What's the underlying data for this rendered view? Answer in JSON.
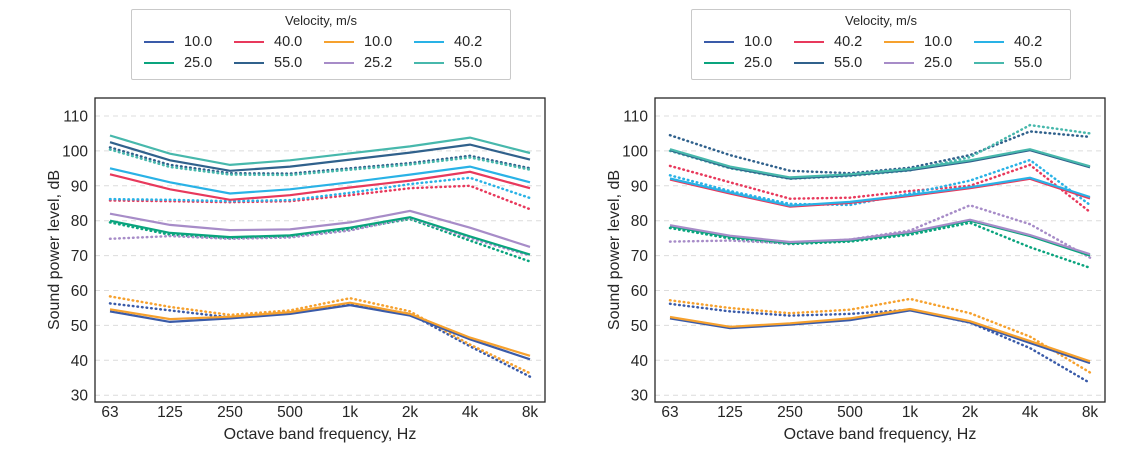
{
  "figure": {
    "background": "#ffffff",
    "text_color": "#262626",
    "grid_color": "#dcdcdc",
    "colors": {
      "blue": "#3A5BA9",
      "green": "#0AA47E",
      "red": "#E8395C",
      "steel_blue": "#30618C",
      "orange": "#F6A12E",
      "purple": "#A78CC8",
      "cyan": "#29B2E6",
      "teal": "#47B8AC"
    }
  },
  "chart_data": [
    {
      "type": "line",
      "panel": "left",
      "legend_title": "Velocity, m/s",
      "xlabel": "Octave band frequency, Hz",
      "ylabel": "Sound power level, dB",
      "categories": [
        "63",
        "125",
        "250",
        "500",
        "1k",
        "2k",
        "4k",
        "8k"
      ],
      "yticks": [
        30,
        40,
        50,
        60,
        70,
        80,
        90,
        100,
        110
      ],
      "ylim": [
        25,
        115
      ],
      "grid": "horizontal-dashed",
      "legend_position": "top-outside",
      "legend": [
        {
          "label": "10.0",
          "color": "#3A5BA9"
        },
        {
          "label": "25.0",
          "color": "#0AA47E"
        },
        {
          "label": "40.0",
          "color": "#E8395C"
        },
        {
          "label": "55.0",
          "color": "#30618C"
        },
        {
          "label": "10.0",
          "color": "#F6A12E"
        },
        {
          "label": "25.2",
          "color": "#A78CC8"
        },
        {
          "label": "40.2",
          "color": "#29B2E6"
        },
        {
          "label": "55.0",
          "color": "#47B8AC"
        }
      ],
      "series": [
        {
          "label": "10.0",
          "color": "#3A5BA9",
          "style": "solid",
          "values": [
            54,
            51,
            52,
            53.3,
            55.8,
            52.8,
            46,
            40.3
          ]
        },
        {
          "label": "25.0",
          "color": "#0AA47E",
          "style": "solid",
          "values": [
            80,
            76.5,
            75.3,
            75.8,
            78,
            81,
            75.5,
            70.3
          ]
        },
        {
          "label": "40.0",
          "color": "#E8395C",
          "style": "solid",
          "values": [
            93.3,
            89,
            86,
            87.3,
            89.5,
            91.5,
            94,
            89.3
          ]
        },
        {
          "label": "55.0",
          "color": "#30618C",
          "style": "solid",
          "values": [
            102.5,
            97.3,
            94.3,
            95.5,
            97.5,
            99.5,
            101.8,
            97.5
          ]
        },
        {
          "label": "10.0",
          "color": "#F6A12E",
          "style": "solid",
          "values": [
            54.6,
            51.8,
            52.5,
            53.8,
            56.5,
            53.3,
            46.5,
            41.3
          ]
        },
        {
          "label": "25.2",
          "color": "#A78CC8",
          "style": "solid",
          "values": [
            82,
            78.8,
            77.3,
            77.5,
            79.5,
            82.8,
            78,
            72.5
          ]
        },
        {
          "label": "40.2",
          "color": "#29B2E6",
          "style": "solid",
          "values": [
            95,
            91,
            87.8,
            89,
            91,
            93.2,
            95.5,
            91
          ]
        },
        {
          "label": "55.0",
          "color": "#47B8AC",
          "style": "solid",
          "values": [
            104.4,
            99.2,
            96,
            97.3,
            99.3,
            101.3,
            103.8,
            99.4
          ]
        },
        {
          "label": "10.0",
          "color": "#3A5BA9",
          "style": "dotted",
          "values": [
            56.3,
            54.3,
            52.3,
            53.8,
            56,
            53.3,
            44,
            35.3
          ]
        },
        {
          "label": "25.0",
          "color": "#0AA47E",
          "style": "dotted",
          "values": [
            79.5,
            76,
            75,
            75.5,
            77.5,
            80.5,
            74.3,
            68.3
          ]
        },
        {
          "label": "40.0",
          "color": "#E8395C",
          "style": "dotted",
          "values": [
            85.8,
            85.6,
            85.3,
            85.6,
            87.3,
            89.3,
            90,
            83.3
          ]
        },
        {
          "label": "55.0",
          "color": "#30618C",
          "style": "dotted",
          "values": [
            101,
            96,
            93.6,
            93.5,
            95,
            96.5,
            98.6,
            95
          ]
        },
        {
          "label": "10.0",
          "color": "#F6A12E",
          "style": "dotted",
          "values": [
            58.3,
            55.3,
            53,
            54.3,
            57.8,
            54,
            44.5,
            36.3
          ]
        },
        {
          "label": "25.2",
          "color": "#A78CC8",
          "style": "dotted",
          "values": [
            74.8,
            75.6,
            74.8,
            75.2,
            77.2,
            80.8,
            75,
            70
          ]
        },
        {
          "label": "40.2",
          "color": "#29B2E6",
          "style": "dotted",
          "values": [
            86.2,
            86,
            85.6,
            85.9,
            88,
            90.5,
            92.3,
            86.5
          ]
        },
        {
          "label": "55.0",
          "color": "#47B8AC",
          "style": "dotted",
          "values": [
            100.4,
            95.4,
            93.2,
            93.1,
            94.6,
            96.1,
            98.1,
            94.6
          ]
        }
      ]
    },
    {
      "type": "line",
      "panel": "right",
      "legend_title": "Velocity, m/s",
      "xlabel": "Octave band frequency, Hz",
      "ylabel": "Sound power level, dB",
      "categories": [
        "63",
        "125",
        "250",
        "500",
        "1k",
        "2k",
        "4k",
        "8k"
      ],
      "yticks": [
        30,
        40,
        50,
        60,
        70,
        80,
        90,
        100,
        110
      ],
      "ylim": [
        25,
        115
      ],
      "grid": "horizontal-dashed",
      "legend_position": "top-outside",
      "legend": [
        {
          "label": "10.0",
          "color": "#3A5BA9"
        },
        {
          "label": "25.0",
          "color": "#0AA47E"
        },
        {
          "label": "40.2",
          "color": "#E8395C"
        },
        {
          "label": "55.0",
          "color": "#30618C"
        },
        {
          "label": "10.0",
          "color": "#F6A12E"
        },
        {
          "label": "25.0",
          "color": "#A78CC8"
        },
        {
          "label": "40.2",
          "color": "#29B2E6"
        },
        {
          "label": "55.0",
          "color": "#47B8AC"
        }
      ],
      "series": [
        {
          "label": "10.0",
          "color": "#3A5BA9",
          "style": "solid",
          "values": [
            52,
            49.2,
            50.2,
            51.5,
            54.3,
            50.8,
            45,
            39.2
          ]
        },
        {
          "label": "25.0",
          "color": "#0AA47E",
          "style": "solid",
          "values": [
            78.4,
            75.4,
            73.6,
            74.3,
            76.5,
            80,
            75.6,
            70
          ]
        },
        {
          "label": "40.2",
          "color": "#E8395C",
          "style": "solid",
          "values": [
            91.8,
            87.8,
            84,
            85.1,
            87.1,
            89.3,
            92,
            86.4
          ]
        },
        {
          "label": "55.0",
          "color": "#30618C",
          "style": "solid",
          "values": [
            100.2,
            95.2,
            92.1,
            93,
            94.5,
            97,
            100.2,
            95.3
          ]
        },
        {
          "label": "10.0",
          "color": "#F6A12E",
          "style": "solid",
          "values": [
            52.4,
            49.6,
            50.6,
            52,
            54.7,
            51.2,
            45.5,
            39.7
          ]
        },
        {
          "label": "25.0",
          "color": "#A78CC8",
          "style": "solid",
          "values": [
            78.7,
            75.7,
            73.9,
            74.6,
            76.8,
            80.3,
            75.9,
            70.4
          ]
        },
        {
          "label": "40.2",
          "color": "#29B2E6",
          "style": "solid",
          "values": [
            92.1,
            88.1,
            84.3,
            85.4,
            87.4,
            89.6,
            92.3,
            86.8
          ]
        },
        {
          "label": "55.0",
          "color": "#47B8AC",
          "style": "solid",
          "values": [
            100.5,
            95.5,
            92.4,
            93.3,
            94.8,
            97.3,
            100.5,
            95.6
          ]
        },
        {
          "label": "10.0",
          "color": "#3A5BA9",
          "style": "dotted",
          "values": [
            56.2,
            54,
            52.8,
            53.3,
            54.5,
            50.8,
            43.5,
            33.5
          ]
        },
        {
          "label": "25.0",
          "color": "#0AA47E",
          "style": "dotted",
          "values": [
            77.9,
            74.9,
            73.3,
            74,
            76,
            79.4,
            72.4,
            66.5
          ]
        },
        {
          "label": "40.2",
          "color": "#E8395C",
          "style": "dotted",
          "values": [
            95.7,
            91,
            86.3,
            86.6,
            88.5,
            90,
            96,
            82.5
          ]
        },
        {
          "label": "55.0",
          "color": "#30618C",
          "style": "dotted",
          "values": [
            104.5,
            98.8,
            94.3,
            93.6,
            95.2,
            98.8,
            105.6,
            104
          ]
        },
        {
          "label": "10.0",
          "color": "#F6A12E",
          "style": "dotted",
          "values": [
            57.2,
            55,
            53.5,
            54.5,
            57.6,
            53.5,
            46.8,
            36.5
          ]
        },
        {
          "label": "25.0",
          "color": "#A78CC8",
          "style": "dotted",
          "values": [
            74,
            74.3,
            73.5,
            74.6,
            77.2,
            84.4,
            79,
            69.4
          ]
        },
        {
          "label": "40.2",
          "color": "#29B2E6",
          "style": "dotted",
          "values": [
            93,
            88.5,
            84.8,
            84.5,
            87.8,
            91.5,
            97.4,
            84.5
          ]
        },
        {
          "label": "55.0",
          "color": "#47B8AC",
          "style": "dotted",
          "values": [
            100,
            95,
            92,
            92.8,
            94.4,
            98.2,
            107.4,
            105
          ]
        }
      ]
    }
  ]
}
